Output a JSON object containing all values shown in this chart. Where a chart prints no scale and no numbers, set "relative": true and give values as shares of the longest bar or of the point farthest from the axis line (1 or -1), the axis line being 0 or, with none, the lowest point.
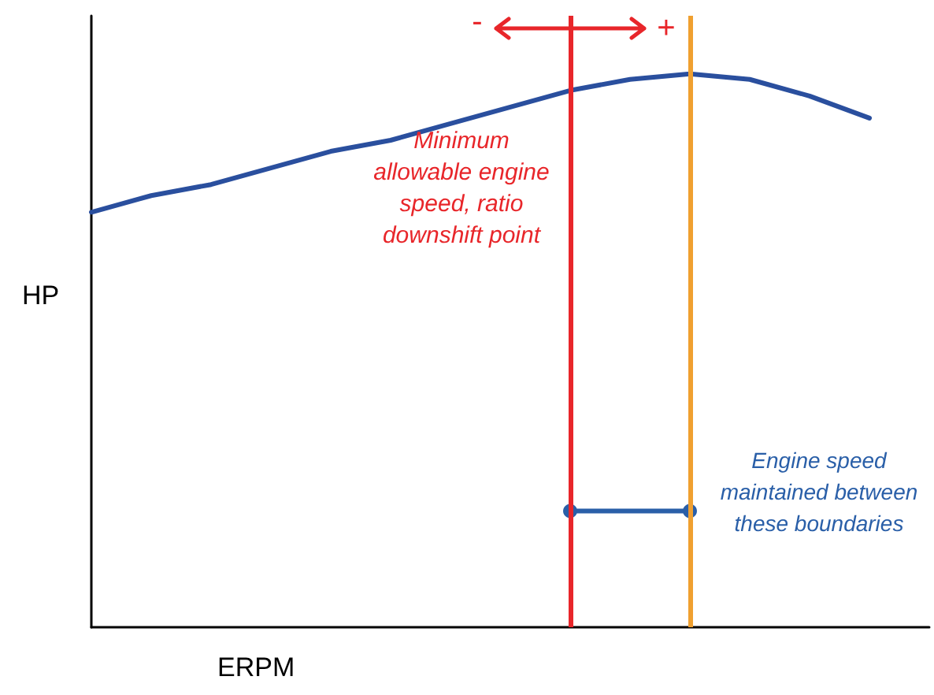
{
  "chart_data": {
    "type": "line",
    "relative": true,
    "xlabel": "ERPM",
    "ylabel": "HP",
    "grid": false,
    "categories": [
      null,
      null,
      null,
      null,
      null,
      null,
      null,
      null,
      null,
      null,
      null,
      null,
      null,
      null
    ],
    "annotations": [
      "Minimum allowable engine speed, ratio downshift point",
      "Engine speed maintained between these boundaries",
      "-",
      "+"
    ],
    "ref_lines": [
      {
        "axis": "x",
        "color": "#e8262a",
        "line_style": "solid"
      },
      {
        "axis": "x",
        "color": "#f0a030",
        "line_style": "solid"
      }
    ],
    "series": [
      {
        "color": "#2a4f9e",
        "marker": "none",
        "values": [
          0.75,
          0.78,
          0.8,
          0.83,
          0.86,
          0.88,
          0.91,
          0.94,
          0.97,
          0.99,
          1,
          0.99,
          0.96,
          0.92
        ]
      },
      {
        "color": "#2a5fa8",
        "marker": "circle",
        "values": [
          null,
          null,
          null,
          null,
          null,
          null,
          null,
          null,
          0.21,
          null,
          0.21,
          null,
          null,
          null
        ]
      }
    ]
  }
}
